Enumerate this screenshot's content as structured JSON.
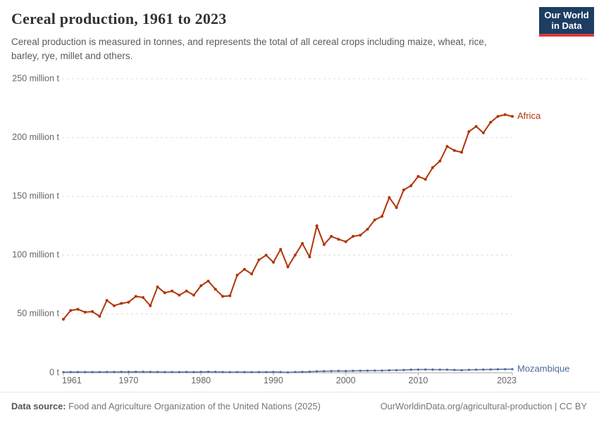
{
  "header": {
    "title": "Cereal production, 1961 to 2023",
    "subtitle": "Cereal production is measured in tonnes, and represents the total of all cereal crops including maize, wheat, rice, barley, rye, millet and others.",
    "logo": {
      "line1": "Our World",
      "line2": "in Data"
    }
  },
  "chart_data": {
    "type": "line",
    "title": "Cereal production, 1961 to 2023",
    "unit": "tonnes",
    "grid": "horizontal dashed",
    "legend_position": "line-end labels",
    "x": [
      1961,
      1962,
      1963,
      1964,
      1965,
      1966,
      1967,
      1968,
      1969,
      1970,
      1971,
      1972,
      1973,
      1974,
      1975,
      1976,
      1977,
      1978,
      1979,
      1980,
      1981,
      1982,
      1983,
      1984,
      1985,
      1986,
      1987,
      1988,
      1989,
      1990,
      1991,
      1992,
      1993,
      1994,
      1995,
      1996,
      1997,
      1998,
      1999,
      2000,
      2001,
      2002,
      2003,
      2004,
      2005,
      2006,
      2007,
      2008,
      2009,
      2010,
      2011,
      2012,
      2013,
      2014,
      2015,
      2016,
      2017,
      2018,
      2019,
      2020,
      2021,
      2022,
      2023
    ],
    "series": [
      {
        "name": "Africa",
        "color": "#b13507",
        "unit": "million t",
        "values": [
          45.5,
          53,
          54,
          51.5,
          52,
          48,
          61.5,
          57,
          59,
          60,
          65,
          64,
          57,
          73,
          68,
          69.5,
          66,
          69.5,
          66,
          74,
          78,
          71,
          65,
          65.5,
          83,
          88,
          84,
          96,
          100,
          94,
          105,
          90,
          100,
          110,
          98.5,
          125,
          109,
          116,
          113.5,
          111.5,
          116,
          117,
          122,
          130,
          133,
          149,
          140.5,
          155.5,
          159,
          167,
          164.5,
          174.5,
          180,
          192.5,
          189,
          187.5,
          205,
          209.5,
          204,
          213,
          218,
          219.5,
          218
        ]
      },
      {
        "name": "Mozambique",
        "color": "#4c6a9c",
        "unit": "million t",
        "values": [
          0.55,
          0.6,
          0.6,
          0.65,
          0.6,
          0.65,
          0.7,
          0.7,
          0.75,
          0.75,
          0.8,
          0.8,
          0.75,
          0.7,
          0.65,
          0.65,
          0.6,
          0.7,
          0.6,
          0.75,
          0.8,
          0.75,
          0.6,
          0.55,
          0.65,
          0.6,
          0.55,
          0.6,
          0.65,
          0.7,
          0.6,
          0.35,
          0.65,
          0.75,
          0.9,
          1.2,
          1.35,
          1.45,
          1.55,
          1.4,
          1.65,
          1.7,
          1.8,
          1.9,
          1.9,
          2.1,
          2.2,
          2.3,
          2.6,
          2.7,
          2.75,
          2.7,
          2.65,
          2.6,
          2.4,
          2.2,
          2.5,
          2.6,
          2.7,
          2.75,
          2.9,
          3.0,
          3.1
        ]
      }
    ],
    "y_axis": {
      "values": [
        0,
        50,
        100,
        150,
        200,
        250
      ],
      "labels": [
        "0 t",
        "50 million t",
        "100 million t",
        "150 million t",
        "200 million t",
        "250 million t"
      ],
      "min": 0,
      "max": 250
    },
    "x_axis": {
      "tick_years": [
        1961,
        1970,
        1980,
        1990,
        2000,
        2010,
        2023
      ],
      "min": 1961,
      "max": 2023
    }
  },
  "footer": {
    "datasource_label": "Data source:",
    "datasource_text": " Food and Agriculture Organization of the United Nations (2025)",
    "license_text": "OurWorldinData.org/agricultural-production | CC BY"
  }
}
